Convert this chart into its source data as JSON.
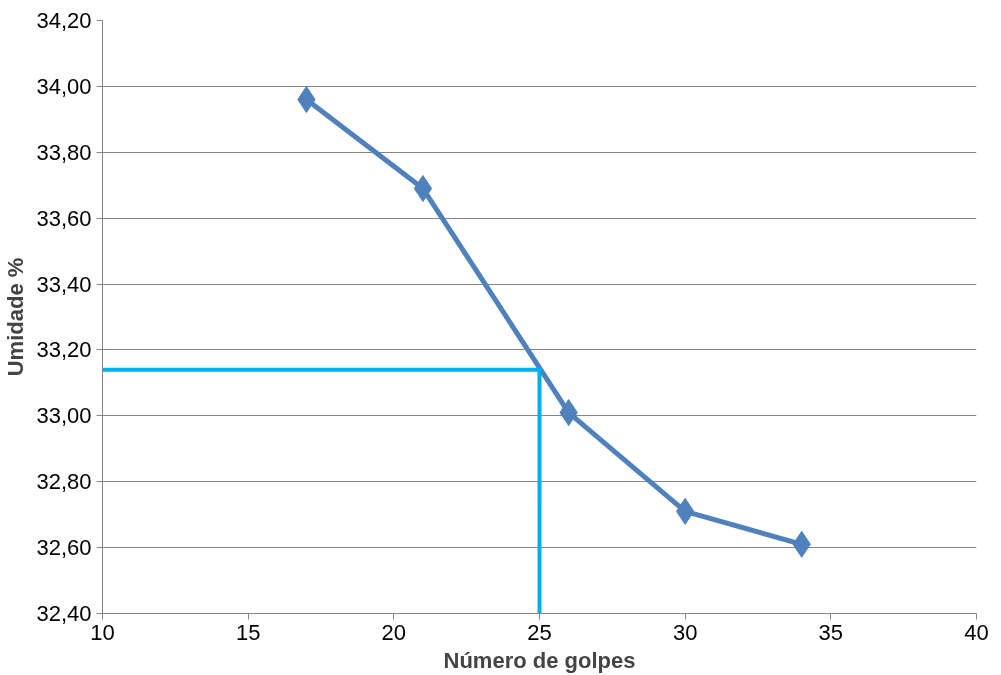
{
  "chart_data": {
    "type": "line",
    "xlabel": "Número de golpes",
    "ylabel": "Umidade %",
    "xlim": [
      10,
      40
    ],
    "xticks": [
      10,
      15,
      20,
      25,
      30,
      35,
      40
    ],
    "ylim": [
      32.4,
      34.2
    ],
    "yticks": [
      {
        "value": 32.4,
        "label": "32,40"
      },
      {
        "value": 32.6,
        "label": "32,60"
      },
      {
        "value": 32.8,
        "label": "32,80"
      },
      {
        "value": 33.0,
        "label": "33,00"
      },
      {
        "value": 33.2,
        "label": "33,20"
      },
      {
        "value": 33.4,
        "label": "33,40"
      },
      {
        "value": 33.6,
        "label": "33,60"
      },
      {
        "value": 33.8,
        "label": "33,80"
      },
      {
        "value": 34.0,
        "label": "34,00"
      },
      {
        "value": 34.2,
        "label": "34,20"
      }
    ],
    "grid": "y",
    "series": [
      {
        "color": "#4f81bd",
        "marker": "diamond",
        "x": [
          17,
          21,
          26,
          30,
          34
        ],
        "values": [
          33.96,
          33.69,
          33.01,
          32.71,
          32.61
        ]
      },
      {
        "color": "#00b0f0",
        "marker": "none",
        "x": [
          10,
          25,
          25
        ],
        "values": [
          33.14,
          33.14,
          32.4
        ]
      }
    ]
  }
}
